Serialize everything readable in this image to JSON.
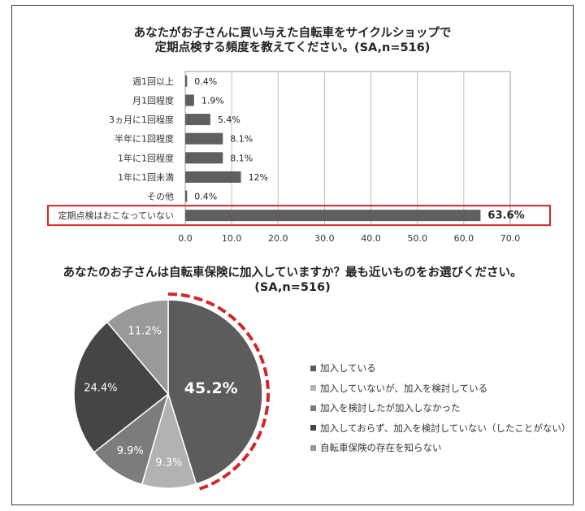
{
  "chart_data": [
    {
      "type": "bar",
      "orientation": "horizontal",
      "title": "あなたがお子さんに買い与えた自転車をサイクルショップで",
      "subtitle": "定期点検する頻度を教えてください。(SA,n=516)",
      "categories": [
        "週1回以上",
        "月1回程度",
        "3ヵ月に1回程度",
        "半年に1回程度",
        "1年に1回程度",
        "1年に1回未満",
        "その他",
        "定期点検はおこなっていない"
      ],
      "values": [
        0.4,
        1.9,
        5.4,
        8.1,
        8.1,
        12,
        0.4,
        63.6
      ],
      "value_labels": [
        "0.4%",
        "1.9%",
        "5.4%",
        "8.1%",
        "8.1%",
        "12%",
        "0.4%",
        "63.6%"
      ],
      "xlim": [
        0,
        70
      ],
      "xticks": [
        0,
        10,
        20,
        30,
        40,
        50,
        60,
        70
      ],
      "xtick_labels": [
        "0.0",
        "10.0",
        "20.0",
        "30.0",
        "40.0",
        "50.0",
        "60.0",
        "70.0"
      ],
      "highlight_index": 7,
      "highlight_color": "#d0272a",
      "bar_color": "#5f5f5f",
      "grid": true
    },
    {
      "type": "pie",
      "title": "あなたのお子さんは自転車保険に加入していますか？最も近いものをお選びください。",
      "subtitle": "(SA,n=516)",
      "labels": [
        "加入している",
        "加入していないが、加入を検討している",
        "加入を検討したが加入しなかった",
        "加入しておらず、加入を検討していない（したことがない）",
        "自転車保険の存在を知らない"
      ],
      "values": [
        45.2,
        9.3,
        9.9,
        24.4,
        11.2
      ],
      "value_labels": [
        "45.2%",
        "9.3%",
        "9.9%",
        "24.4%",
        "11.2%"
      ],
      "colors": [
        "#5c5c5c",
        "#b2b2b2",
        "#7c7c7c",
        "#454545",
        "#999999"
      ],
      "highlight_index": 0,
      "highlight_color": "#d0272a",
      "legend_position": "right"
    }
  ]
}
